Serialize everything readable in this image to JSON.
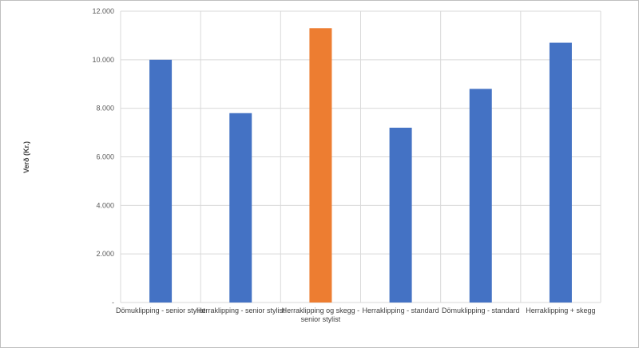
{
  "chart_data": {
    "type": "bar",
    "title": "",
    "xlabel": "",
    "ylabel": "Verð (Kr.)",
    "ylim": [
      0,
      12000
    ],
    "grid": true,
    "y_ticks": [
      {
        "value": 0,
        "label": "-"
      },
      {
        "value": 2000,
        "label": "2.000"
      },
      {
        "value": 4000,
        "label": "4.000"
      },
      {
        "value": 6000,
        "label": "6.000"
      },
      {
        "value": 8000,
        "label": "8.000"
      },
      {
        "value": 10000,
        "label": "10.000"
      },
      {
        "value": 12000,
        "label": "12.000"
      }
    ],
    "categories": [
      [
        "Dömuklipping - senior stylist"
      ],
      [
        "Herraklipping - senior stylist"
      ],
      [
        "Herraklipping og skegg -",
        "senior stylist"
      ],
      [
        "Herraklipping - standard"
      ],
      [
        "Dömuklipping - standard"
      ],
      [
        "Herraklipping + skegg"
      ]
    ],
    "values": [
      10000,
      7800,
      11300,
      7200,
      8800,
      10700
    ],
    "colors": [
      "#4472C4",
      "#4472C4",
      "#ED7D31",
      "#4472C4",
      "#4472C4",
      "#4472C4"
    ],
    "gridline_color": "#d9d9d9"
  }
}
